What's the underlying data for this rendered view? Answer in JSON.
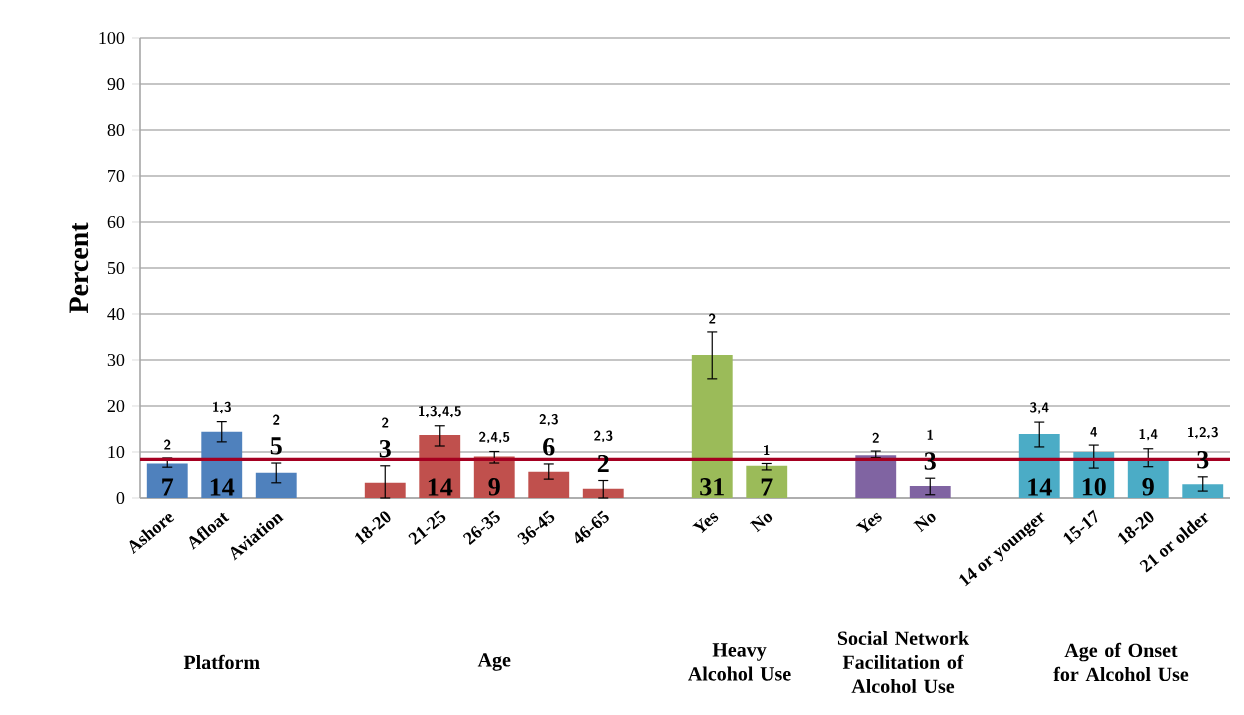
{
  "chart_data": {
    "type": "bar",
    "ylabel": "Percent",
    "categories": [
      "Ashore",
      "Afloat",
      "Aviation",
      null,
      "18-20",
      "21-25",
      "26-35",
      "36-45",
      "46-65",
      null,
      "Yes",
      "No",
      null,
      "Yes",
      "No",
      null,
      "14 or younger",
      "15-17",
      "18-20",
      "21 or older"
    ],
    "values": [
      7.5,
      14.4,
      5.5,
      null,
      3.3,
      13.7,
      9.0,
      5.7,
      2.0,
      null,
      31.1,
      7.0,
      null,
      9.3,
      2.6,
      null,
      13.9,
      10.0,
      8.6,
      3.0
    ],
    "colors": [
      "#4f81bd",
      "#4f81bd",
      "#4f81bd",
      null,
      "#c0504d",
      "#c0504d",
      "#c0504d",
      "#c0504d",
      "#c0504d",
      null,
      "#9bbb59",
      "#9bbb59",
      null,
      "#8064a2",
      "#8064a2",
      null,
      "#4bacc6",
      "#4bacc6",
      "#4bacc6",
      "#4bacc6"
    ],
    "errors": [
      [
        6.7,
        8.7
      ],
      [
        12.2,
        16.6
      ],
      [
        3.3,
        7.6
      ],
      null,
      [
        0,
        7.0
      ],
      [
        11.3,
        15.7
      ],
      [
        7.6,
        10.1
      ],
      [
        4.1,
        7.4
      ],
      [
        0,
        3.8
      ],
      null,
      [
        25.9,
        36.1
      ],
      [
        6.1,
        7.5
      ],
      null,
      [
        8.8,
        10.2
      ],
      [
        0.7,
        4.3
      ],
      null,
      [
        11.1,
        16.5
      ],
      [
        6.5,
        11.5
      ],
      [
        6.8,
        10.7
      ],
      [
        1.5,
        4.6
      ]
    ],
    "value_labels": [
      "7",
      "14",
      "5",
      null,
      "3",
      "14",
      "9",
      "6",
      "2",
      null,
      "31",
      "7",
      null,
      null,
      "3",
      null,
      "14",
      "10",
      "9",
      "3"
    ],
    "ylim": [
      0,
      100
    ],
    "yticks": [
      0,
      10,
      20,
      30,
      40,
      50,
      60,
      70,
      80,
      90,
      100
    ],
    "grid": "y",
    "ref_lines": [
      {
        "axis": "y",
        "value": 8.4,
        "color": "#a50021"
      }
    ],
    "annotations": [
      "2",
      "1,3",
      "2",
      "2",
      "1,3,4,5",
      "2,4,5",
      "2,3",
      "2,3",
      "2",
      "1",
      "2",
      "1",
      "3,4",
      "4",
      "1,4",
      "1,2,3",
      "Platform",
      "Age",
      "Heavy Alcohol Use",
      "Social Network Facilitation of Alcohol Use",
      "Age of Onset for Alcohol Use"
    ]
  }
}
